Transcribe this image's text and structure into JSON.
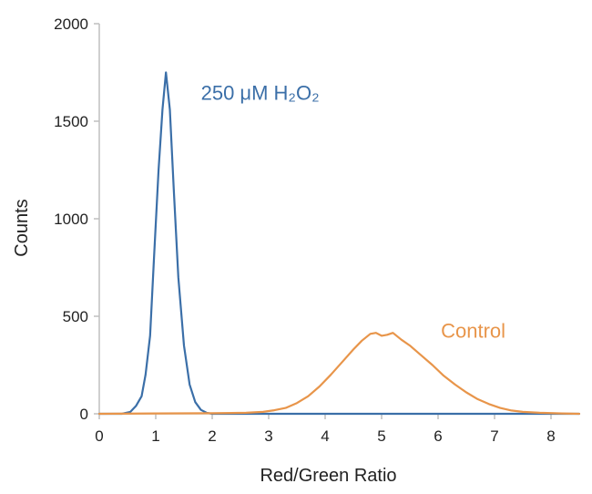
{
  "chart_data": {
    "type": "line",
    "xlabel": "Red/Green Ratio",
    "ylabel": "Counts",
    "xlim": [
      0,
      8.5
    ],
    "ylim": [
      0,
      2000
    ],
    "x_ticks": [
      "0",
      "1",
      "2",
      "3",
      "4",
      "5",
      "6",
      "7",
      "8"
    ],
    "y_ticks": [
      "0",
      "500",
      "1000",
      "1500",
      "2000"
    ],
    "grid": false,
    "legend": "none",
    "series": [
      {
        "name": "250 μM H₂O₂",
        "color": "#3b6fa8",
        "label_position": {
          "x": 1.8,
          "y": 1610
        },
        "points": [
          [
            0.0,
            0
          ],
          [
            0.4,
            0
          ],
          [
            0.55,
            10
          ],
          [
            0.65,
            40
          ],
          [
            0.75,
            90
          ],
          [
            0.82,
            200
          ],
          [
            0.9,
            400
          ],
          [
            0.97,
            800
          ],
          [
            1.05,
            1250
          ],
          [
            1.12,
            1560
          ],
          [
            1.18,
            1750
          ],
          [
            1.25,
            1560
          ],
          [
            1.32,
            1150
          ],
          [
            1.4,
            700
          ],
          [
            1.5,
            350
          ],
          [
            1.6,
            150
          ],
          [
            1.7,
            60
          ],
          [
            1.8,
            20
          ],
          [
            1.9,
            5
          ],
          [
            2.0,
            0
          ],
          [
            4.0,
            0
          ],
          [
            8.5,
            0
          ]
        ]
      },
      {
        "name": "Control",
        "color": "#e8954a",
        "label_position": {
          "x": 6.05,
          "y": 390
        },
        "points": [
          [
            0.0,
            0
          ],
          [
            1.0,
            2
          ],
          [
            2.0,
            3
          ],
          [
            2.6,
            5
          ],
          [
            2.9,
            10
          ],
          [
            3.1,
            18
          ],
          [
            3.3,
            30
          ],
          [
            3.5,
            55
          ],
          [
            3.7,
            90
          ],
          [
            3.9,
            140
          ],
          [
            4.1,
            200
          ],
          [
            4.3,
            265
          ],
          [
            4.5,
            330
          ],
          [
            4.65,
            375
          ],
          [
            4.8,
            410
          ],
          [
            4.9,
            415
          ],
          [
            5.0,
            400
          ],
          [
            5.1,
            405
          ],
          [
            5.2,
            415
          ],
          [
            5.35,
            380
          ],
          [
            5.5,
            350
          ],
          [
            5.7,
            300
          ],
          [
            5.9,
            250
          ],
          [
            6.1,
            195
          ],
          [
            6.3,
            150
          ],
          [
            6.5,
            110
          ],
          [
            6.7,
            75
          ],
          [
            6.9,
            50
          ],
          [
            7.1,
            30
          ],
          [
            7.3,
            17
          ],
          [
            7.5,
            10
          ],
          [
            7.8,
            5
          ],
          [
            8.2,
            2
          ],
          [
            8.5,
            0
          ]
        ]
      }
    ]
  }
}
